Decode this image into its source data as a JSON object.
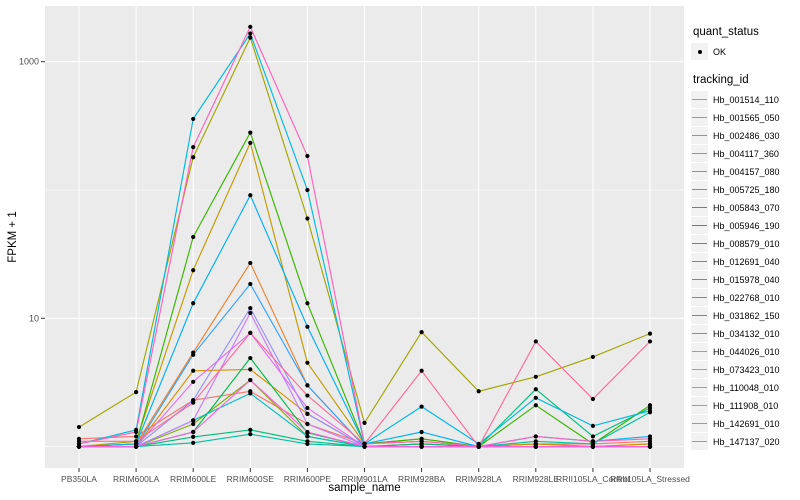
{
  "figure": {
    "panel_background": "#EBEBEB",
    "grid_color": "#FFFFFF",
    "tick_mark_color": "#333333",
    "tick_label_color": "#4D4D4D",
    "point_color": "#000000"
  },
  "legend": {
    "quant_status_title": "quant_status",
    "quant_status_items": [
      {
        "label": "OK",
        "symbol": "point"
      }
    ],
    "tracking_id_title": "tracking_id"
  },
  "chart_data": {
    "type": "line",
    "title": "",
    "xlabel": "sample_name",
    "ylabel": "FPKM + 1",
    "y_scale": "log10",
    "ylim": [
      0.68,
      2700
    ],
    "y_major_ticks": [
      10,
      1000
    ],
    "y_minor_ticks": [
      1,
      100
    ],
    "grid": true,
    "legend_position": "right",
    "point_shape": "filled-circle",
    "categories": [
      "PB350LA",
      "RRIM600LA",
      "RRIM600LE",
      "RRIM600SE",
      "RRIM600PE",
      "RRIM901LA",
      "RRIM928BA",
      "RRIM928LA",
      "RRIM928LE",
      "RRII105LA_Control",
      "RRII105LA_Stressed"
    ],
    "series": [
      {
        "name": "Hb_001514_110",
        "color": "#F8766D",
        "values": [
          1.15,
          1.2,
          2.3,
          2.7,
          1.5,
          1.05,
          1.1,
          1.0,
          1.05,
          1.05,
          1.1
        ]
      },
      {
        "name": "Hb_001565_050",
        "color": "#EA8331",
        "values": [
          1.0,
          1.05,
          5.4,
          27,
          3.0,
          1.0,
          1.05,
          1.0,
          1.05,
          1.0,
          1.05
        ]
      },
      {
        "name": "Hb_002486_030",
        "color": "#D89000",
        "values": [
          1.0,
          1.0,
          3.9,
          4.0,
          1.8,
          1.0,
          1.0,
          1.0,
          1.0,
          1.0,
          1.0
        ]
      },
      {
        "name": "Hb_004117_360",
        "color": "#C09B00",
        "values": [
          1.0,
          1.1,
          23.7,
          233,
          4.5,
          1.05,
          1.15,
          1.0,
          1.05,
          1.0,
          1.05
        ]
      },
      {
        "name": "Hb_004157_080",
        "color": "#A3A500",
        "values": [
          1.42,
          2.66,
          180,
          1540,
          60,
          1.53,
          7.8,
          2.7,
          3.5,
          5.0,
          7.6
        ]
      },
      {
        "name": "Hb_005725_180",
        "color": "#7CAE00",
        "values": [
          1.0,
          1.0,
          1.5,
          3.3,
          1.2,
          1.0,
          1.05,
          1.0,
          1.0,
          1.0,
          1.0
        ]
      },
      {
        "name": "Hb_005843_070",
        "color": "#39B600",
        "values": [
          1.0,
          1.05,
          43,
          280,
          13.1,
          1.05,
          1.15,
          1.0,
          2.1,
          1.05,
          2.1
        ]
      },
      {
        "name": "Hb_005946_190",
        "color": "#00BB4E",
        "values": [
          1.0,
          1.0,
          1.3,
          4.9,
          1.28,
          1.0,
          1.0,
          1.0,
          1.0,
          1.0,
          1.0
        ]
      },
      {
        "name": "Hb_008579_010",
        "color": "#00BF7D",
        "values": [
          1.0,
          1.0,
          1.19,
          1.35,
          1.1,
          1.0,
          1.05,
          1.0,
          2.8,
          1.2,
          2.0
        ]
      },
      {
        "name": "Hb_012691_040",
        "color": "#00C1A3",
        "values": [
          1.0,
          1.0,
          1.07,
          1.25,
          1.05,
          1.0,
          1.0,
          1.0,
          1.1,
          1.05,
          1.85
        ]
      },
      {
        "name": "Hb_015978_040",
        "color": "#00BFC4",
        "values": [
          1.0,
          1.0,
          1.6,
          2.6,
          1.2,
          1.0,
          1.0,
          1.0,
          1.0,
          1.0,
          1.0
        ]
      },
      {
        "name": "Hb_022768_010",
        "color": "#00BAE0",
        "values": [
          1.05,
          1.35,
          358,
          1660,
          100,
          1.05,
          2.05,
          1.05,
          2.4,
          1.45,
          1.9
        ]
      },
      {
        "name": "Hb_031862_150",
        "color": "#00B0F6",
        "values": [
          1.0,
          1.05,
          13.1,
          91,
          8.6,
          1.05,
          1.3,
          1.0,
          1.2,
          1.1,
          1.2
        ]
      },
      {
        "name": "Hb_034132_010",
        "color": "#35A2FF",
        "values": [
          1.0,
          1.0,
          5.2,
          18.5,
          3.0,
          1.0,
          1.0,
          1.0,
          1.0,
          1.0,
          1.0
        ]
      },
      {
        "name": "Hb_044026_010",
        "color": "#9590FF",
        "values": [
          1.0,
          1.0,
          2.3,
          12,
          1.8,
          1.0,
          1.0,
          1.0,
          1.0,
          1.0,
          1.0
        ]
      },
      {
        "name": "Hb_073423_010",
        "color": "#C77CFF",
        "values": [
          1.0,
          1.0,
          1.6,
          11,
          1.5,
          1.0,
          1.0,
          1.0,
          1.0,
          1.0,
          1.0
        ]
      },
      {
        "name": "Hb_110048_010",
        "color": "#E76BF3",
        "values": [
          1.0,
          1.0,
          3.2,
          7.7,
          2.0,
          1.0,
          1.0,
          1.0,
          1.0,
          1.0,
          1.0
        ]
      },
      {
        "name": "Hb_111908_010",
        "color": "#FA62DB",
        "values": [
          1.0,
          1.0,
          1.3,
          3.3,
          1.3,
          1.0,
          1.0,
          1.0,
          1.0,
          1.0,
          1.0
        ]
      },
      {
        "name": "Hb_142691_010",
        "color": "#FF62BC",
        "values": [
          1.05,
          1.3,
          216,
          1870,
          184,
          1.05,
          1.1,
          1.0,
          1.2,
          1.1,
          1.15
        ]
      },
      {
        "name": "Hb_147137_020",
        "color": "#FF6A98",
        "values": [
          1.1,
          1.1,
          2.2,
          7.7,
          2.5,
          1.05,
          3.9,
          1.0,
          6.6,
          2.35,
          6.6
        ]
      }
    ]
  }
}
